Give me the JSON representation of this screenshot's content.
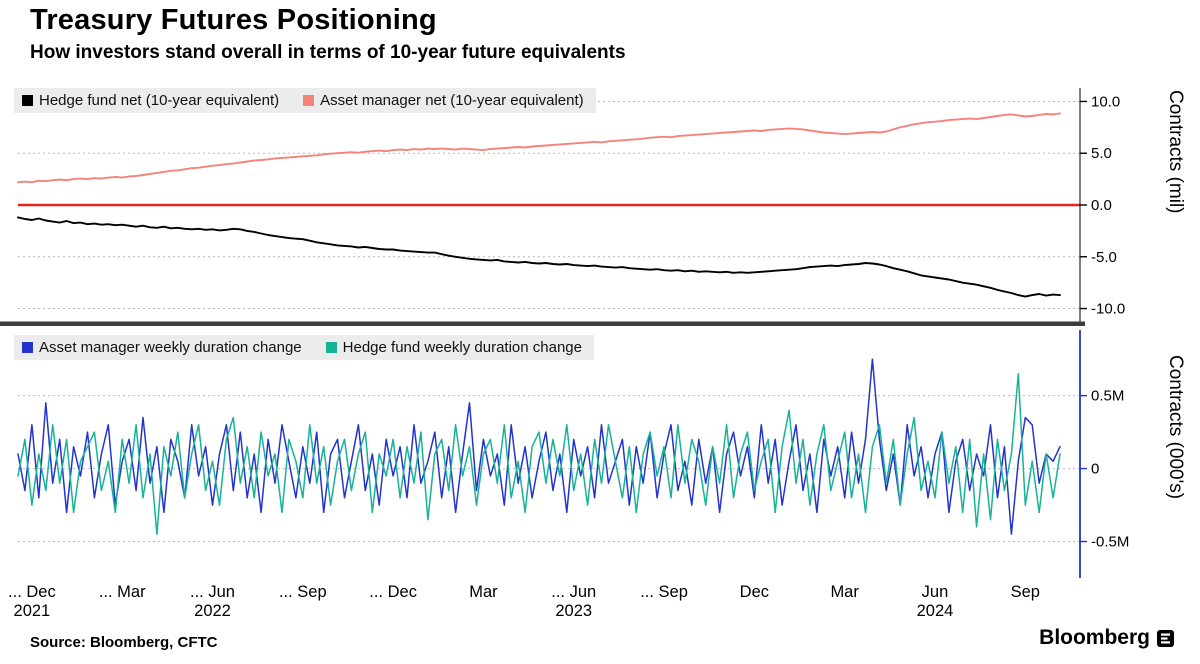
{
  "header": {
    "title": "Treasury Futures Positioning",
    "subtitle": "How investors stand overall in terms of 10-year future equivalents"
  },
  "footer": {
    "source": "Source: Bloomberg, CFTC",
    "brand": "Bloomberg"
  },
  "x_axis": {
    "ticks": [
      {
        "label": "... Dec",
        "week": 2,
        "year": "2021"
      },
      {
        "label": "... Mar",
        "week": 15
      },
      {
        "label": "... Jun",
        "week": 28,
        "year": "2022"
      },
      {
        "label": "... Sep",
        "week": 41
      },
      {
        "label": "... Dec",
        "week": 54
      },
      {
        "label": "Mar",
        "week": 67
      },
      {
        "label": "... Jun",
        "week": 80,
        "year": "2023"
      },
      {
        "label": "... Sep",
        "week": 93
      },
      {
        "label": "Dec",
        "week": 106
      },
      {
        "label": "Mar",
        "week": 119
      },
      {
        "label": "Jun",
        "week": 132,
        "year": "2024"
      },
      {
        "label": "Sep",
        "week": 145
      }
    ]
  },
  "chart_data": [
    {
      "type": "line",
      "title": "Net positioning (10-year equivalents)",
      "xlabel": "",
      "ylabel": "Contracts  (mil)",
      "ylim": [
        -11.3,
        11.3
      ],
      "yticks": [
        10.0,
        5.0,
        0.0,
        -5.0,
        -10.0
      ],
      "ytick_labels": [
        "10.0",
        "5.0",
        "0.0",
        "-5.0",
        "-10.0"
      ],
      "grid": "dotted-horizontal",
      "legend_position": "top-left",
      "axis_color": "#000000",
      "zero_line": {
        "value": 0,
        "color": "#e8251f"
      },
      "x_unit": "weeks from Nov 2021",
      "series": [
        {
          "name": "Hedge fund net (10-year equivalent)",
          "color": "#000000",
          "values": [
            -1.2,
            -1.35,
            -1.45,
            -1.3,
            -1.5,
            -1.6,
            -1.7,
            -1.55,
            -1.75,
            -1.7,
            -1.85,
            -1.8,
            -1.9,
            -1.85,
            -1.95,
            -1.9,
            -2.0,
            -2.1,
            -2.0,
            -2.15,
            -2.2,
            -2.1,
            -2.25,
            -2.2,
            -2.3,
            -2.35,
            -2.3,
            -2.4,
            -2.35,
            -2.45,
            -2.4,
            -2.3,
            -2.35,
            -2.5,
            -2.6,
            -2.75,
            -2.9,
            -3.0,
            -3.1,
            -3.2,
            -3.25,
            -3.3,
            -3.45,
            -3.6,
            -3.7,
            -3.8,
            -3.9,
            -3.95,
            -4.0,
            -4.1,
            -4.05,
            -4.15,
            -4.25,
            -4.3,
            -4.3,
            -4.4,
            -4.45,
            -4.5,
            -4.55,
            -4.6,
            -4.6,
            -4.75,
            -4.9,
            -5.0,
            -5.1,
            -5.2,
            -5.25,
            -5.3,
            -5.35,
            -5.3,
            -5.45,
            -5.5,
            -5.55,
            -5.5,
            -5.6,
            -5.65,
            -5.6,
            -5.7,
            -5.75,
            -5.7,
            -5.8,
            -5.85,
            -5.9,
            -5.85,
            -5.95,
            -6.0,
            -6.05,
            -6.0,
            -6.1,
            -6.15,
            -6.2,
            -6.25,
            -6.2,
            -6.3,
            -6.35,
            -6.3,
            -6.4,
            -6.35,
            -6.45,
            -6.4,
            -6.45,
            -6.5,
            -6.45,
            -6.55,
            -6.5,
            -6.55,
            -6.5,
            -6.45,
            -6.4,
            -6.35,
            -6.3,
            -6.25,
            -6.2,
            -6.1,
            -6.0,
            -5.95,
            -5.9,
            -5.85,
            -5.9,
            -5.8,
            -5.75,
            -5.7,
            -5.6,
            -5.65,
            -5.75,
            -5.9,
            -6.1,
            -6.25,
            -6.4,
            -6.6,
            -6.8,
            -6.9,
            -7.0,
            -7.1,
            -7.2,
            -7.35,
            -7.5,
            -7.6,
            -7.7,
            -7.85,
            -8.0,
            -8.2,
            -8.35,
            -8.5,
            -8.7,
            -8.85,
            -8.7,
            -8.6,
            -8.75,
            -8.65,
            -8.7
          ]
        },
        {
          "name": "Asset manager net (10-year equivalent)",
          "color": "#f5837c",
          "values": [
            2.2,
            2.25,
            2.2,
            2.35,
            2.3,
            2.4,
            2.45,
            2.4,
            2.5,
            2.55,
            2.5,
            2.6,
            2.55,
            2.65,
            2.7,
            2.65,
            2.75,
            2.8,
            2.9,
            3.0,
            3.1,
            3.2,
            3.3,
            3.35,
            3.45,
            3.55,
            3.6,
            3.7,
            3.8,
            3.85,
            3.95,
            4.0,
            4.1,
            4.2,
            4.3,
            4.35,
            4.4,
            4.5,
            4.55,
            4.6,
            4.65,
            4.7,
            4.75,
            4.8,
            4.9,
            4.95,
            5.0,
            5.05,
            5.1,
            5.05,
            5.15,
            5.2,
            5.25,
            5.2,
            5.3,
            5.35,
            5.3,
            5.4,
            5.35,
            5.45,
            5.4,
            5.45,
            5.4,
            5.35,
            5.45,
            5.4,
            5.35,
            5.3,
            5.4,
            5.45,
            5.5,
            5.55,
            5.6,
            5.55,
            5.65,
            5.7,
            5.75,
            5.8,
            5.85,
            5.9,
            5.95,
            6.0,
            6.05,
            6.1,
            6.05,
            6.15,
            6.2,
            6.25,
            6.3,
            6.35,
            6.4,
            6.5,
            6.55,
            6.6,
            6.55,
            6.65,
            6.7,
            6.75,
            6.8,
            6.85,
            6.9,
            6.95,
            7.0,
            7.05,
            7.1,
            7.15,
            7.2,
            7.15,
            7.25,
            7.3,
            7.35,
            7.4,
            7.35,
            7.3,
            7.2,
            7.1,
            7.0,
            6.95,
            6.9,
            6.85,
            6.9,
            6.95,
            7.0,
            7.05,
            7.0,
            7.1,
            7.3,
            7.5,
            7.65,
            7.8,
            7.9,
            8.0,
            8.05,
            8.1,
            8.2,
            8.25,
            8.3,
            8.35,
            8.3,
            8.4,
            8.5,
            8.6,
            8.7,
            8.75,
            8.65,
            8.55,
            8.6,
            8.7,
            8.8,
            8.75,
            8.85
          ]
        }
      ]
    },
    {
      "type": "line",
      "title": "Weekly duration change",
      "xlabel": "",
      "ylabel": "Contracts  (000's)",
      "ylim": [
        -0.75,
        0.95
      ],
      "yticks": [
        0.5,
        0,
        -0.5
      ],
      "ytick_labels": [
        "0.5M",
        "0",
        "-0.5M"
      ],
      "grid": "dotted-horizontal",
      "legend_position": "top-left",
      "axis_color": "#2433d0",
      "x_unit": "weeks from Nov 2021",
      "series": [
        {
          "name": "Asset manager weekly duration change",
          "color": "#2433d0",
          "values": [
            0.1,
            -0.15,
            0.3,
            -0.2,
            0.45,
            -0.1,
            0.2,
            -0.3,
            0.15,
            -0.05,
            0.25,
            -0.2,
            0.1,
            0.3,
            -0.25,
            0.05,
            0.2,
            -0.15,
            0.35,
            -0.1,
            0.15,
            -0.3,
            0.2,
            0.05,
            -0.2,
            0.3,
            -0.05,
            0.15,
            -0.25,
            0.1,
            0.3,
            -0.15,
            0.25,
            -0.2,
            0.1,
            -0.3,
            0.2,
            -0.1,
            0.3,
            0.05,
            -0.2,
            0.15,
            -0.1,
            0.25,
            -0.3,
            0.1,
            0.2,
            -0.2,
            0.05,
            0.3,
            -0.15,
            0.1,
            -0.25,
            0.2,
            -0.05,
            0.15,
            -0.2,
            0.3,
            -0.1,
            0.05,
            0.25,
            -0.2,
            0.15,
            -0.3,
            0.1,
            0.45,
            -0.15,
            0.2,
            -0.05,
            0.1,
            -0.25,
            0.3,
            -0.1,
            0.15,
            -0.2,
            0.05,
            0.25,
            -0.15,
            0.1,
            -0.3,
            0.2,
            -0.05,
            0.15,
            -0.2,
            0.3,
            -0.1,
            0.05,
            0.2,
            -0.25,
            0.15,
            -0.1,
            0.25,
            -0.2,
            0.1,
            0.3,
            -0.15,
            0.05,
            -0.25,
            0.2,
            -0.1,
            0.15,
            -0.3,
            0.1,
            0.25,
            -0.05,
            0.15,
            -0.2,
            0.3,
            -0.1,
            0.2,
            -0.25,
            0.05,
            0.3,
            -0.15,
            0.1,
            -0.3,
            0.2,
            -0.05,
            0.15,
            -0.2,
            0.25,
            -0.1,
            0.2,
            0.75,
            0.2,
            -0.15,
            0.1,
            -0.25,
            0.3,
            -0.05,
            0.15,
            -0.2,
            0.1,
            0.25,
            -0.3,
            0.05,
            0.2,
            -0.15,
            0.1,
            -0.05,
            0.3,
            -0.2,
            0.15,
            -0.45,
            0.05,
            0.35,
            0.3,
            -0.1,
            0.1,
            0.05,
            0.15
          ]
        },
        {
          "name": "Hedge fund weekly duration change",
          "color": "#16b394",
          "values": [
            -0.05,
            0.2,
            -0.25,
            0.1,
            -0.15,
            0.3,
            -0.1,
            0.2,
            -0.3,
            0.05,
            0.15,
            0.25,
            -0.15,
            0.05,
            -0.3,
            0.2,
            -0.1,
            0.3,
            -0.2,
            0.1,
            -0.45,
            0.15,
            -0.05,
            0.25,
            -0.2,
            0.1,
            0.3,
            -0.15,
            0.05,
            -0.25,
            0.2,
            0.35,
            -0.1,
            0.15,
            -0.2,
            0.25,
            -0.05,
            0.1,
            -0.3,
            0.2,
            0.05,
            -0.2,
            0.3,
            -0.1,
            0.15,
            -0.25,
            0.05,
            0.2,
            -0.15,
            0.1,
            0.25,
            -0.3,
            0.1,
            -0.05,
            0.2,
            -0.2,
            0.15,
            -0.1,
            0.25,
            -0.35,
            0.1,
            0.2,
            -0.15,
            0.3,
            -0.05,
            0.15,
            -0.25,
            0.1,
            0.2,
            -0.1,
            0.3,
            -0.2,
            0.05,
            -0.3,
            0.15,
            0.25,
            -0.1,
            0.2,
            -0.05,
            0.3,
            -0.15,
            0.1,
            -0.25,
            0.2,
            -0.1,
            0.3,
            0.05,
            -0.2,
            0.15,
            -0.3,
            0.1,
            0.25,
            -0.05,
            0.15,
            -0.2,
            0.3,
            -0.1,
            0.2,
            0.05,
            -0.25,
            0.15,
            -0.1,
            0.3,
            -0.2,
            0.1,
            0.25,
            -0.15,
            0.05,
            0.2,
            -0.3,
            0.15,
            0.4,
            -0.1,
            0.2,
            -0.25,
            0.1,
            0.3,
            -0.15,
            0.05,
            0.25,
            -0.2,
            0.1,
            -0.3,
            0.15,
            0.3,
            -0.1,
            0.2,
            -0.25,
            0.1,
            0.35,
            -0.15,
            0.05,
            -0.2,
            0.25,
            -0.1,
            0.15,
            -0.3,
            0.2,
            -0.4,
            0.1,
            -0.35,
            0.2,
            -0.15,
            0.1,
            0.65,
            -0.25,
            0.05,
            -0.3,
            0.1,
            -0.2,
            0.1
          ]
        }
      ]
    }
  ]
}
